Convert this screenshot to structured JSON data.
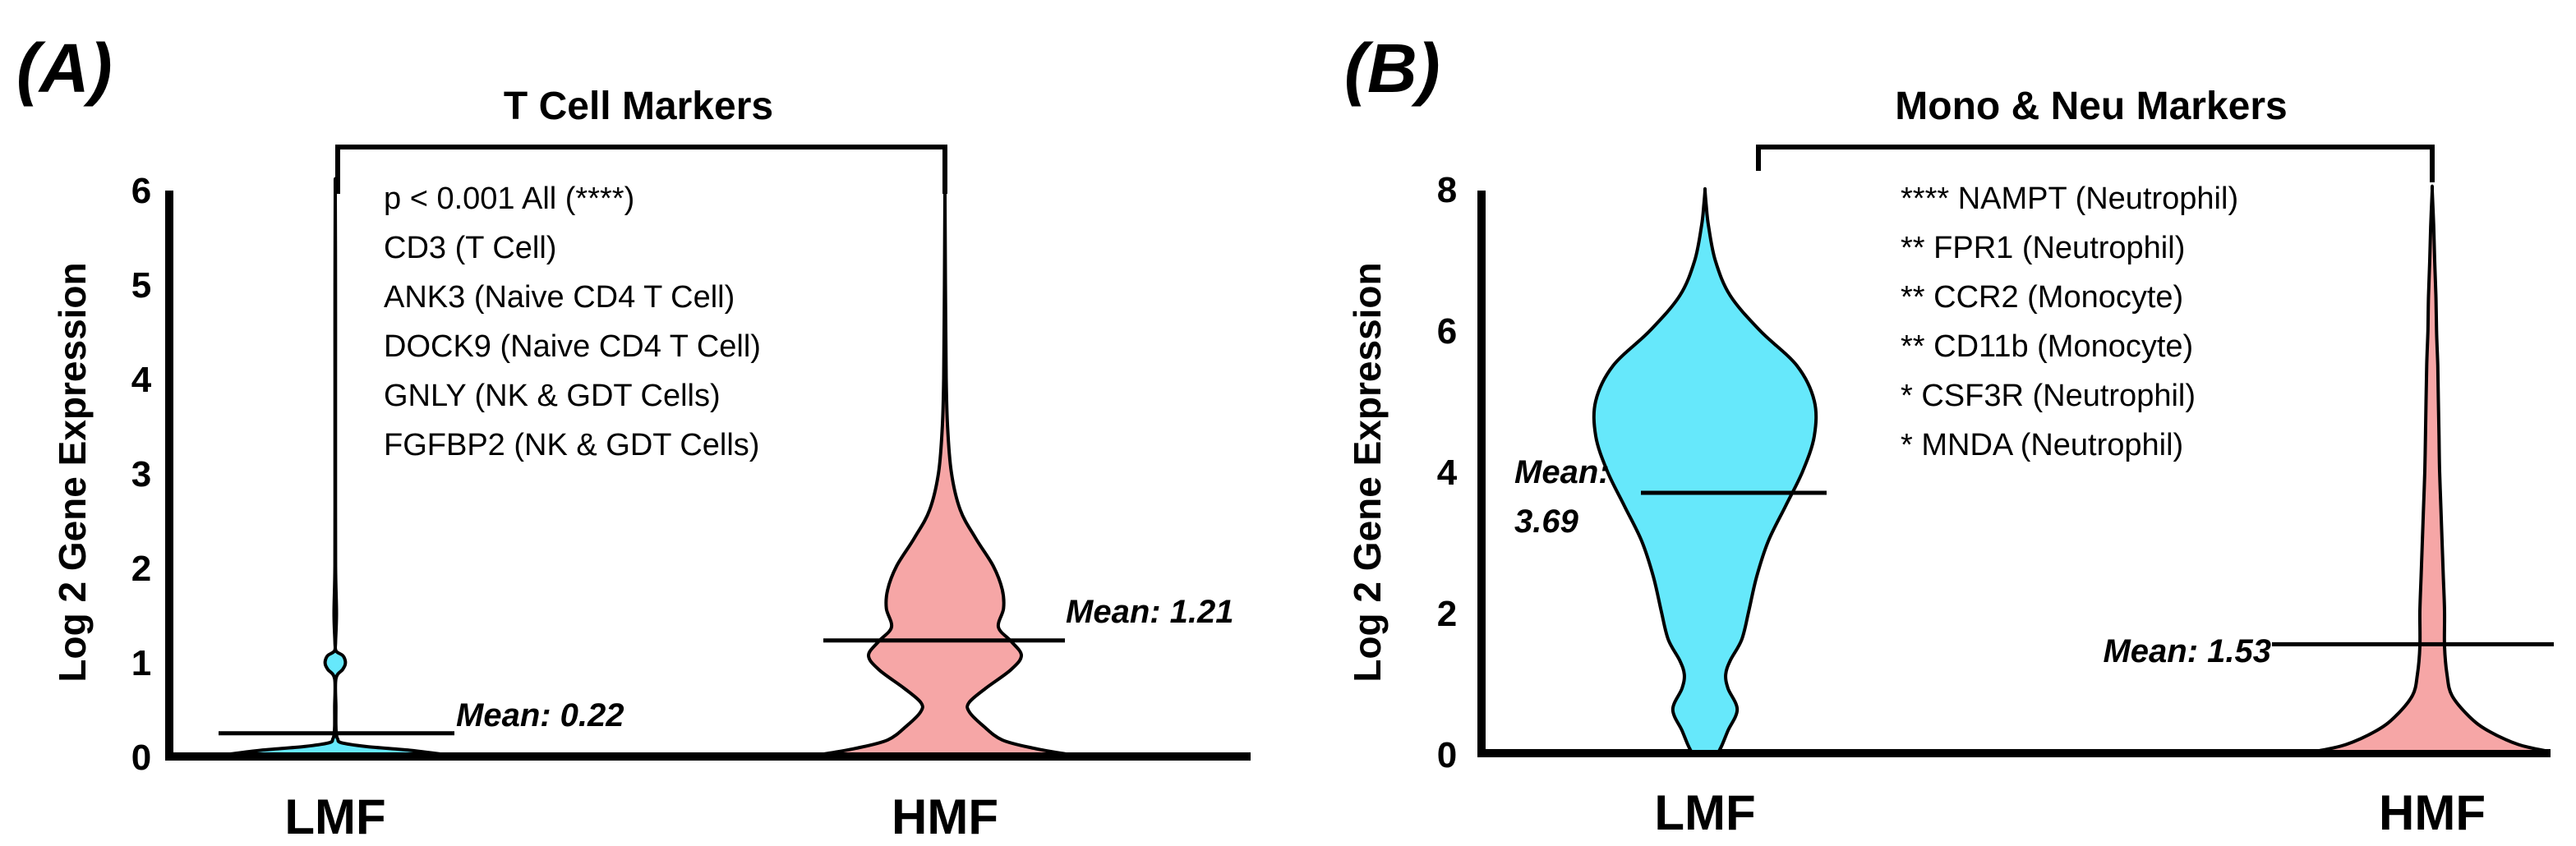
{
  "panels": [
    {
      "panel_label": "(A)",
      "title": "T Cell Markers",
      "ylabel": "Log 2 Gene Expression",
      "notes": [
        "p < 0.001 All (****)",
        "CD3 (T Cell)",
        "ANK3 (Naive CD4 T Cell)",
        "DOCK9 (Naive CD4 T Cell)",
        "GNLY (NK & GDT Cells)",
        "FGFBP2 (NK & GDT Cells)"
      ],
      "colors": {
        "LMF": "#66e8fb",
        "HMF": "#f6a6a6"
      }
    },
    {
      "panel_label": "(B)",
      "title": "Mono & Neu Markers",
      "ylabel": "Log 2 Gene Expression",
      "notes": [
        "**** NAMPT (Neutrophil)",
        "** FPR1 (Neutrophil)",
        "** CCR2 (Monocyte)",
        "** CD11b (Monocyte)",
        "* CSF3R (Neutrophil)",
        "* MNDA (Neutrophil)"
      ],
      "colors": {
        "LMF": "#66e8fb",
        "HMF": "#f6a6a6"
      }
    }
  ],
  "chart_data": [
    {
      "type": "violin",
      "title": "T Cell Markers",
      "ylabel": "Log 2 Gene Expression",
      "ylim": [
        0,
        6
      ],
      "yticks": [
        "0",
        "1",
        "2",
        "3",
        "4",
        "5",
        "6"
      ],
      "categories": [
        "LMF",
        "HMF"
      ],
      "means": [
        0.22,
        1.21
      ],
      "mean_labels": [
        "Mean: 0.22",
        "Mean: 1.21"
      ],
      "violins": [
        {
          "name": "LMF",
          "y": [
            0,
            0.04,
            0.08,
            0.12,
            0.16,
            0.2,
            0.3,
            0.5,
            0.8,
            0.9,
            0.95,
            1.0,
            1.05,
            1.1,
            1.2,
            1.5,
            2.0,
            3.0,
            4.0,
            5.0,
            6.0
          ],
          "w": [
            0.85,
            0.6,
            0.25,
            0.05,
            0.02,
            0.01,
            0.005,
            0.005,
            0.005,
            0.06,
            0.08,
            0.08,
            0.06,
            0.005,
            0.003,
            0.01,
            0.003,
            0.002,
            0.002,
            0.002,
            0.0
          ]
        },
        {
          "name": "HMF",
          "y": [
            0,
            0.06,
            0.15,
            0.3,
            0.45,
            0.55,
            0.7,
            0.9,
            1.05,
            1.2,
            1.35,
            1.55,
            1.75,
            2.0,
            2.3,
            2.6,
            3.0,
            3.5,
            4.0,
            5.0,
            6.0
          ],
          "w": [
            0.95,
            0.7,
            0.45,
            0.3,
            0.19,
            0.19,
            0.32,
            0.52,
            0.6,
            0.52,
            0.42,
            0.46,
            0.45,
            0.38,
            0.24,
            0.12,
            0.05,
            0.02,
            0.01,
            0.004,
            0.0
          ]
        }
      ],
      "significance": "p < 0.001 All (****)"
    },
    {
      "type": "violin",
      "title": "Mono & Neu Markers",
      "ylabel": "Log 2 Gene Expression",
      "ylim": [
        0,
        8
      ],
      "yticks": [
        "0",
        "2",
        "4",
        "6",
        "8"
      ],
      "categories": [
        "LMF",
        "HMF"
      ],
      "means": [
        3.69,
        1.53
      ],
      "mean_labels": [
        "Mean: 3.69",
        "Mean: 1.53"
      ],
      "violins": [
        {
          "name": "LMF",
          "y": [
            0,
            0.1,
            0.3,
            0.6,
            0.9,
            1.1,
            1.3,
            1.6,
            2.0,
            2.5,
            3.0,
            3.5,
            4.0,
            4.5,
            5.0,
            5.5,
            6.0,
            6.5,
            7.0,
            7.5,
            7.8,
            8.0
          ],
          "w": [
            0.12,
            0.15,
            0.2,
            0.28,
            0.2,
            0.18,
            0.22,
            0.32,
            0.38,
            0.45,
            0.55,
            0.7,
            0.85,
            0.95,
            0.95,
            0.8,
            0.48,
            0.22,
            0.09,
            0.03,
            0.01,
            0.0
          ]
        },
        {
          "name": "HMF",
          "y": [
            0,
            0.1,
            0.3,
            0.5,
            0.8,
            1.1,
            1.5,
            2.0,
            2.5,
            3.0,
            3.5,
            4.0,
            4.5,
            5.0,
            5.5,
            6.0,
            6.5,
            7.0,
            7.5,
            8.0
          ],
          "w": [
            0.95,
            0.7,
            0.45,
            0.3,
            0.16,
            0.12,
            0.1,
            0.1,
            0.09,
            0.08,
            0.07,
            0.06,
            0.055,
            0.05,
            0.045,
            0.035,
            0.03,
            0.02,
            0.012,
            0.0
          ]
        }
      ],
      "notes": [
        "**** NAMPT (Neutrophil)",
        "** FPR1 (Neutrophil)",
        "** CCR2 (Monocyte)",
        "** CD11b (Monocyte)",
        "* CSF3R (Neutrophil)",
        "* MNDA (Neutrophil)"
      ]
    }
  ]
}
